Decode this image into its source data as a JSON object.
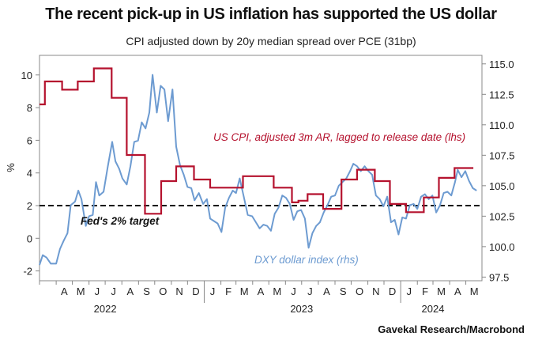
{
  "header": {
    "title": "The recent pick-up in US inflation has supported the US dollar",
    "subtitle": "CPI adjusted down by 20y median spread over PCE (31bp)",
    "source": "Gavekal Research/Macrobond"
  },
  "colors": {
    "cpi": "#b5122e",
    "dxy": "#6d9bd1",
    "target": "#111111",
    "frame": "#888888"
  },
  "chart_data": {
    "type": "line",
    "left_axis": {
      "label": "%",
      "range": [
        -2.6,
        11.2
      ],
      "ticks": [
        "-2",
        "0",
        "2",
        "4",
        "6",
        "8",
        "10"
      ]
    },
    "right_axis": {
      "range": [
        97.2,
        115.7
      ],
      "ticks": [
        "97.5",
        "100.0",
        "102.5",
        "105.0",
        "107.5",
        "110.0",
        "112.5",
        "115.0"
      ]
    },
    "x_axis": {
      "range": [
        "2022-03-01",
        "2024-05-31"
      ],
      "months": [
        "A",
        "M",
        "J",
        "J",
        "A",
        "S",
        "O",
        "N",
        "D",
        "J",
        "F",
        "M",
        "A",
        "M",
        "J",
        "J",
        "A",
        "S",
        "O",
        "N",
        "D",
        "J",
        "F",
        "M",
        "A",
        "M"
      ],
      "years": [
        {
          "label": "2022",
          "center": "2022-07-01"
        },
        {
          "label": "2023",
          "center": "2023-07-01"
        },
        {
          "label": "2024",
          "center": "2024-03-01"
        }
      ]
    },
    "series": [
      {
        "name": "US CPI, adjusted 3m AR, lagged to release date (lhs)",
        "axis": "left",
        "shape": "step",
        "points": [
          [
            "2022-03-01",
            8.2
          ],
          [
            "2022-03-11",
            9.6
          ],
          [
            "2022-04-12",
            9.1
          ],
          [
            "2022-05-11",
            9.6
          ],
          [
            "2022-06-10",
            10.4
          ],
          [
            "2022-07-13",
            8.6
          ],
          [
            "2022-08-10",
            5.1
          ],
          [
            "2022-09-13",
            1.5
          ],
          [
            "2022-10-13",
            3.5
          ],
          [
            "2022-11-10",
            4.4
          ],
          [
            "2022-12-13",
            3.6
          ],
          [
            "2023-01-12",
            3.1
          ],
          [
            "2023-02-14",
            3.1
          ],
          [
            "2023-03-14",
            3.8
          ],
          [
            "2023-04-12",
            3.8
          ],
          [
            "2023-05-10",
            3.1
          ],
          [
            "2023-06-13",
            2.2
          ],
          [
            "2023-06-25",
            2.3
          ],
          [
            "2023-07-12",
            2.7
          ],
          [
            "2023-08-10",
            1.8
          ],
          [
            "2023-09-13",
            3.6
          ],
          [
            "2023-10-12",
            4.2
          ],
          [
            "2023-11-14",
            3.5
          ],
          [
            "2023-12-12",
            2.1
          ],
          [
            "2024-01-11",
            1.6
          ],
          [
            "2024-02-13",
            2.5
          ],
          [
            "2024-03-12",
            3.7
          ],
          [
            "2024-04-10",
            4.3
          ],
          [
            "2024-05-15",
            4.3
          ]
        ]
      },
      {
        "name": "DXY dollar index (rhs)",
        "axis": "right",
        "shape": "line",
        "points": [
          [
            "2022-03-01",
            98.5
          ],
          [
            "2022-03-07",
            99.3
          ],
          [
            "2022-03-14",
            99.1
          ],
          [
            "2022-03-22",
            98.6
          ],
          [
            "2022-04-01",
            98.6
          ],
          [
            "2022-04-08",
            99.8
          ],
          [
            "2022-04-15",
            100.5
          ],
          [
            "2022-04-22",
            101.1
          ],
          [
            "2022-04-28",
            103.4
          ],
          [
            "2022-05-06",
            103.7
          ],
          [
            "2022-05-12",
            104.6
          ],
          [
            "2022-05-18",
            103.9
          ],
          [
            "2022-05-26",
            101.7
          ],
          [
            "2022-06-01",
            102.5
          ],
          [
            "2022-06-08",
            102.6
          ],
          [
            "2022-06-14",
            105.3
          ],
          [
            "2022-06-20",
            104.2
          ],
          [
            "2022-06-28",
            104.5
          ],
          [
            "2022-07-06",
            106.6
          ],
          [
            "2022-07-14",
            108.6
          ],
          [
            "2022-07-20",
            107.0
          ],
          [
            "2022-07-27",
            106.4
          ],
          [
            "2022-08-02",
            105.6
          ],
          [
            "2022-08-10",
            105.1
          ],
          [
            "2022-08-17",
            106.6
          ],
          [
            "2022-08-24",
            108.6
          ],
          [
            "2022-08-31",
            108.7
          ],
          [
            "2022-09-07",
            110.2
          ],
          [
            "2022-09-14",
            109.7
          ],
          [
            "2022-09-21",
            111.0
          ],
          [
            "2022-09-27",
            114.1
          ],
          [
            "2022-10-05",
            111.0
          ],
          [
            "2022-10-12",
            113.2
          ],
          [
            "2022-10-19",
            112.9
          ],
          [
            "2022-10-26",
            110.3
          ],
          [
            "2022-11-03",
            112.9
          ],
          [
            "2022-11-10",
            108.2
          ],
          [
            "2022-11-17",
            106.7
          ],
          [
            "2022-11-24",
            105.9
          ],
          [
            "2022-12-01",
            104.9
          ],
          [
            "2022-12-08",
            104.8
          ],
          [
            "2022-12-14",
            103.8
          ],
          [
            "2022-12-22",
            104.4
          ],
          [
            "2022-12-30",
            103.5
          ],
          [
            "2023-01-06",
            103.9
          ],
          [
            "2023-01-12",
            102.3
          ],
          [
            "2023-01-19",
            102.1
          ],
          [
            "2023-01-26",
            101.9
          ],
          [
            "2023-02-02",
            101.2
          ],
          [
            "2023-02-09",
            103.2
          ],
          [
            "2023-02-16",
            104.0
          ],
          [
            "2023-02-23",
            104.6
          ],
          [
            "2023-03-01",
            104.4
          ],
          [
            "2023-03-08",
            105.6
          ],
          [
            "2023-03-15",
            104.2
          ],
          [
            "2023-03-23",
            102.6
          ],
          [
            "2023-03-31",
            102.5
          ],
          [
            "2023-04-07",
            102.0
          ],
          [
            "2023-04-14",
            101.5
          ],
          [
            "2023-04-21",
            101.8
          ],
          [
            "2023-04-28",
            101.7
          ],
          [
            "2023-05-05",
            101.3
          ],
          [
            "2023-05-12",
            102.7
          ],
          [
            "2023-05-19",
            103.2
          ],
          [
            "2023-05-26",
            104.2
          ],
          [
            "2023-06-02",
            104.0
          ],
          [
            "2023-06-09",
            103.5
          ],
          [
            "2023-06-16",
            102.2
          ],
          [
            "2023-06-23",
            102.9
          ],
          [
            "2023-06-30",
            103.0
          ],
          [
            "2023-07-07",
            102.3
          ],
          [
            "2023-07-14",
            99.9
          ],
          [
            "2023-07-21",
            101.1
          ],
          [
            "2023-07-28",
            101.7
          ],
          [
            "2023-08-04",
            102.0
          ],
          [
            "2023-08-11",
            102.8
          ],
          [
            "2023-08-18",
            103.4
          ],
          [
            "2023-08-25",
            104.1
          ],
          [
            "2023-09-01",
            104.2
          ],
          [
            "2023-09-08",
            105.0
          ],
          [
            "2023-09-15",
            105.3
          ],
          [
            "2023-09-22",
            105.6
          ],
          [
            "2023-09-29",
            106.2
          ],
          [
            "2023-10-05",
            106.8
          ],
          [
            "2023-10-12",
            106.6
          ],
          [
            "2023-10-19",
            106.2
          ],
          [
            "2023-10-26",
            106.6
          ],
          [
            "2023-11-02",
            106.2
          ],
          [
            "2023-11-09",
            105.9
          ],
          [
            "2023-11-16",
            104.2
          ],
          [
            "2023-11-23",
            103.9
          ],
          [
            "2023-11-30",
            103.3
          ],
          [
            "2023-12-07",
            104.1
          ],
          [
            "2023-12-14",
            102.0
          ],
          [
            "2023-12-21",
            102.2
          ],
          [
            "2023-12-28",
            101.0
          ],
          [
            "2024-01-04",
            102.4
          ],
          [
            "2024-01-11",
            102.3
          ],
          [
            "2024-01-18",
            103.4
          ],
          [
            "2024-01-25",
            103.5
          ],
          [
            "2024-02-01",
            103.1
          ],
          [
            "2024-02-08",
            104.1
          ],
          [
            "2024-02-15",
            104.3
          ],
          [
            "2024-02-22",
            103.9
          ],
          [
            "2024-02-29",
            104.2
          ],
          [
            "2024-03-07",
            102.8
          ],
          [
            "2024-03-14",
            103.4
          ],
          [
            "2024-03-21",
            104.4
          ],
          [
            "2024-03-28",
            104.5
          ],
          [
            "2024-04-04",
            104.2
          ],
          [
            "2024-04-11",
            105.3
          ],
          [
            "2024-04-16",
            106.3
          ],
          [
            "2024-04-23",
            105.7
          ],
          [
            "2024-04-30",
            106.2
          ],
          [
            "2024-05-07",
            105.4
          ],
          [
            "2024-05-14",
            104.8
          ],
          [
            "2024-05-21",
            104.6
          ]
        ]
      }
    ],
    "reference_line": {
      "label": "Fed's 2% target",
      "value": 2,
      "axis": "left",
      "style": "dashed"
    },
    "annotations": [
      {
        "text": "US CPI, adjusted 3m AR, lagged to release date (lhs)",
        "series": "cpi"
      },
      {
        "text": "Fed's 2% target",
        "series": "target"
      },
      {
        "text": "DXY dollar index (rhs)",
        "series": "dxy"
      }
    ]
  }
}
